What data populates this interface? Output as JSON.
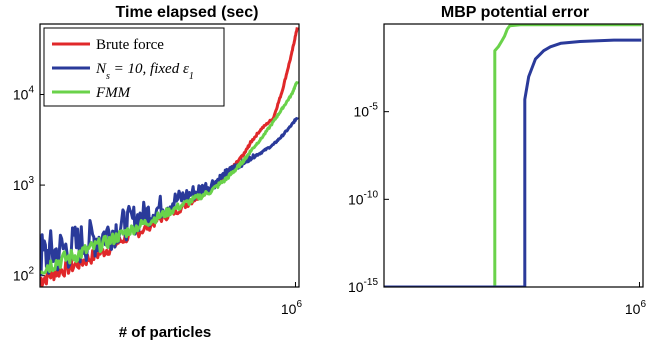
{
  "chart_data": [
    {
      "type": "line",
      "title": "Time elapsed (sec)",
      "xlabel": "# of particles",
      "ylabel": "",
      "xscale": "log",
      "yscale": "log",
      "xlim": [
        1000,
        1100000
      ],
      "ylim": [
        75,
        60000
      ],
      "xticks": [
        {
          "base": "10",
          "exp": "6",
          "value": 1000000
        }
      ],
      "yticks": [
        {
          "base": "10",
          "exp": "2",
          "value": 100
        },
        {
          "base": "10",
          "exp": "3",
          "value": 1000
        },
        {
          "base": "10",
          "exp": "4",
          "value": 10000
        }
      ],
      "legend": {
        "position": "top-left"
      },
      "grid": false,
      "series": [
        {
          "name": "Brute force",
          "color": "#e0282a",
          "x": [
            1000,
            1500,
            2500,
            4000,
            6500,
            10000,
            16000,
            25000,
            40000,
            65000,
            100000,
            150000,
            200000,
            250000,
            300000,
            400000,
            550000,
            700000,
            900000,
            1050000
          ],
          "y": [
            90,
            110,
            130,
            160,
            200,
            260,
            320,
            420,
            520,
            700,
            900,
            1300,
            1700,
            2200,
            3000,
            4200,
            5500,
            11000,
            28000,
            55000
          ]
        },
        {
          "name": "N_s = 10, fixed ε_1",
          "label_html": "N<tspan baseline-shift='sub' font-size='10'>s</tspan> = 10, fixed ε<tspan baseline-shift='sub' font-size='10'>1</tspan>",
          "color": "#2a3a9a",
          "x": [
            1000,
            1500,
            2500,
            4000,
            6500,
            10000,
            16000,
            25000,
            40000,
            65000,
            100000,
            150000,
            200000,
            250000,
            300000,
            400000,
            550000,
            700000,
            900000,
            1050000
          ],
          "y": [
            160,
            180,
            210,
            250,
            300,
            370,
            460,
            560,
            680,
            830,
            1000,
            1300,
            1600,
            1800,
            2000,
            2300,
            2800,
            3500,
            4600,
            5600
          ]
        },
        {
          "name": "FMM",
          "color": "#6ad24a",
          "x": [
            1000,
            1500,
            2500,
            4000,
            6500,
            10000,
            16000,
            25000,
            40000,
            65000,
            100000,
            150000,
            200000,
            250000,
            300000,
            400000,
            550000,
            700000,
            900000,
            1050000
          ],
          "y": [
            120,
            140,
            165,
            200,
            240,
            300,
            370,
            450,
            560,
            700,
            850,
            1150,
            1500,
            1900,
            2400,
            3300,
            5000,
            7000,
            10000,
            14000
          ]
        }
      ]
    },
    {
      "type": "line",
      "title": "MBP potential error",
      "xlabel": "",
      "ylabel": "",
      "xscale": "log",
      "yscale": "log",
      "xlim": [
        1000,
        1100000
      ],
      "ylim": [
        1e-15,
        1
      ],
      "xticks": [
        {
          "base": "10",
          "exp": "6",
          "value": 1000000
        }
      ],
      "yticks": [
        {
          "base": "10",
          "exp": "-15",
          "value": 1e-15
        },
        {
          "base": "10",
          "exp": "-10",
          "value": 1e-10
        },
        {
          "base": "10",
          "exp": "-5",
          "value": 1e-05
        }
      ],
      "grid": false,
      "series": [
        {
          "color": "#6ad24a",
          "x": [
            1000,
            20000,
            20000,
            22000,
            24000,
            26000,
            28000,
            30000,
            40000,
            100000,
            1050000
          ],
          "y": [
            1e-15,
            1e-15,
            0.03,
            0.05,
            0.1,
            0.2,
            0.5,
            0.8,
            0.9,
            0.9,
            0.9
          ]
        },
        {
          "color": "#2a3a9a",
          "x": [
            1000,
            30000,
            45000,
            45000,
            50000,
            60000,
            75000,
            90000,
            120000,
            200000,
            500000,
            1050000
          ],
          "y": [
            1e-15,
            1e-15,
            1e-15,
            5e-05,
            0.001,
            0.01,
            0.03,
            0.05,
            0.08,
            0.1,
            0.12,
            0.12
          ]
        }
      ]
    }
  ]
}
